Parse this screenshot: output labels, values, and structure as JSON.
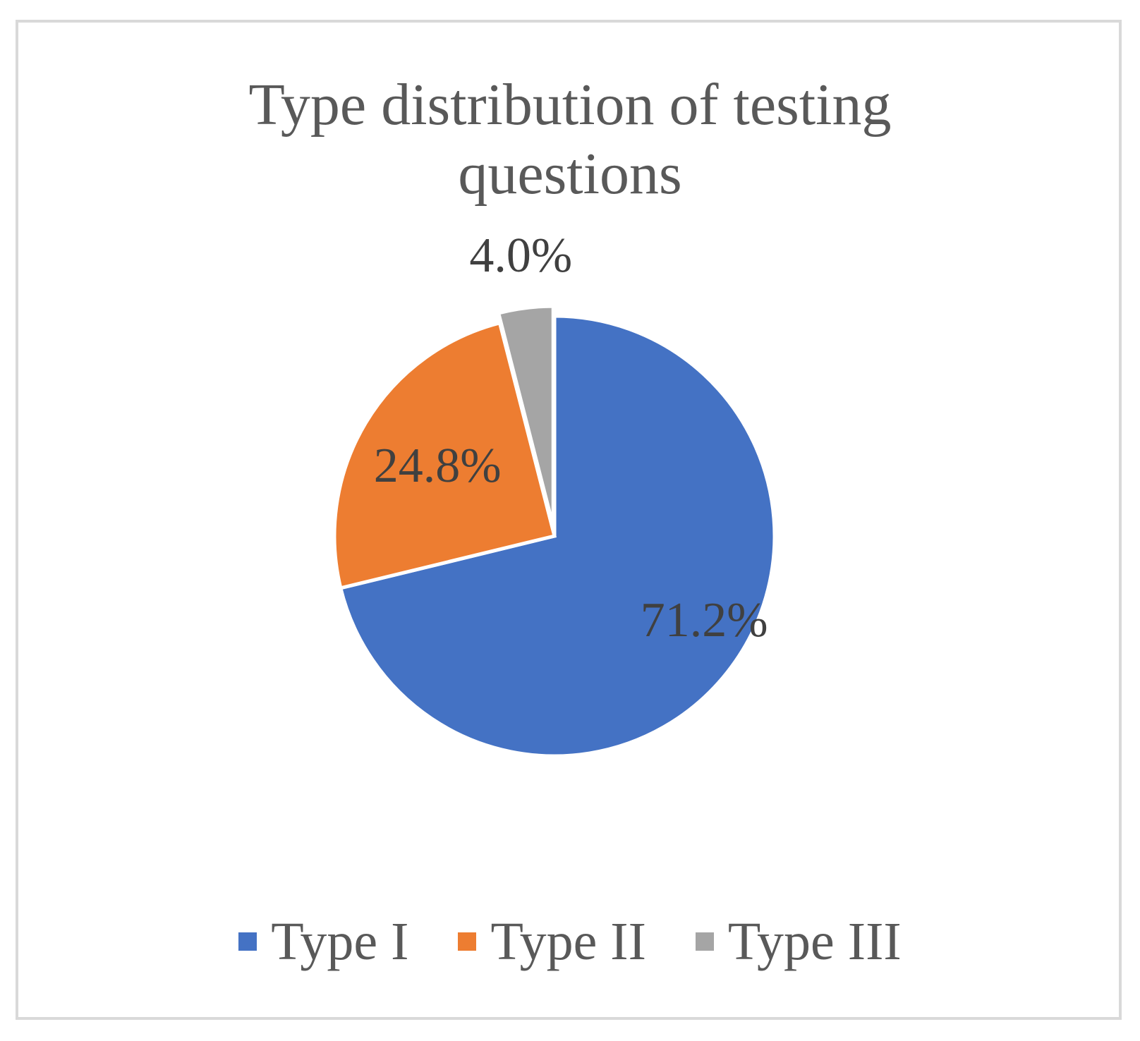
{
  "chart_data": {
    "type": "pie",
    "title": "Type distribution of testing questions",
    "title_lines": [
      "Type distribution of testing",
      "questions"
    ],
    "categories": [
      "Type I",
      "Type II",
      "Type III"
    ],
    "values": [
      71.2,
      24.8,
      4.0
    ],
    "data_labels": [
      "71.2%",
      "24.8%",
      "4.0%"
    ],
    "colors": [
      "#4472c4",
      "#ed7d31",
      "#a5a5a5"
    ],
    "legend_position": "bottom",
    "start_angle": "12 o'clock",
    "direction": "clockwise"
  }
}
